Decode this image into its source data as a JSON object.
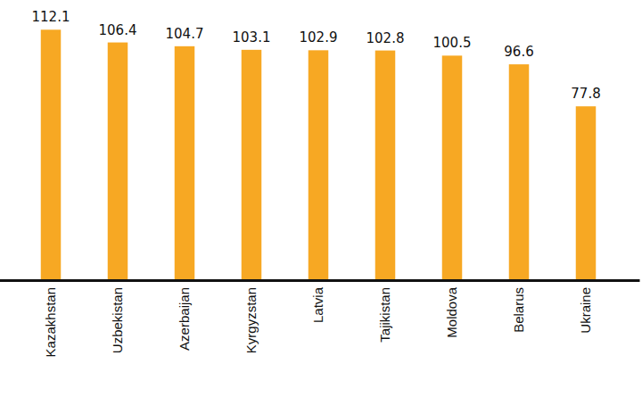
{
  "chart_data": {
    "type": "bar",
    "categories": [
      "Kazakhstan",
      "Uzbekistan",
      "Azerbaijan",
      "Kyrgyzstan",
      "Latvia",
      "Tajikistan",
      "Moldova",
      "Belarus",
      "Ukraine"
    ],
    "values": [
      112.1,
      106.4,
      104.7,
      103.1,
      102.9,
      102.8,
      100.5,
      96.6,
      77.8
    ],
    "color": "#f7a823",
    "ylim": [
      0,
      125
    ],
    "grid": false,
    "data_labels": true,
    "tick_labels": "x"
  }
}
